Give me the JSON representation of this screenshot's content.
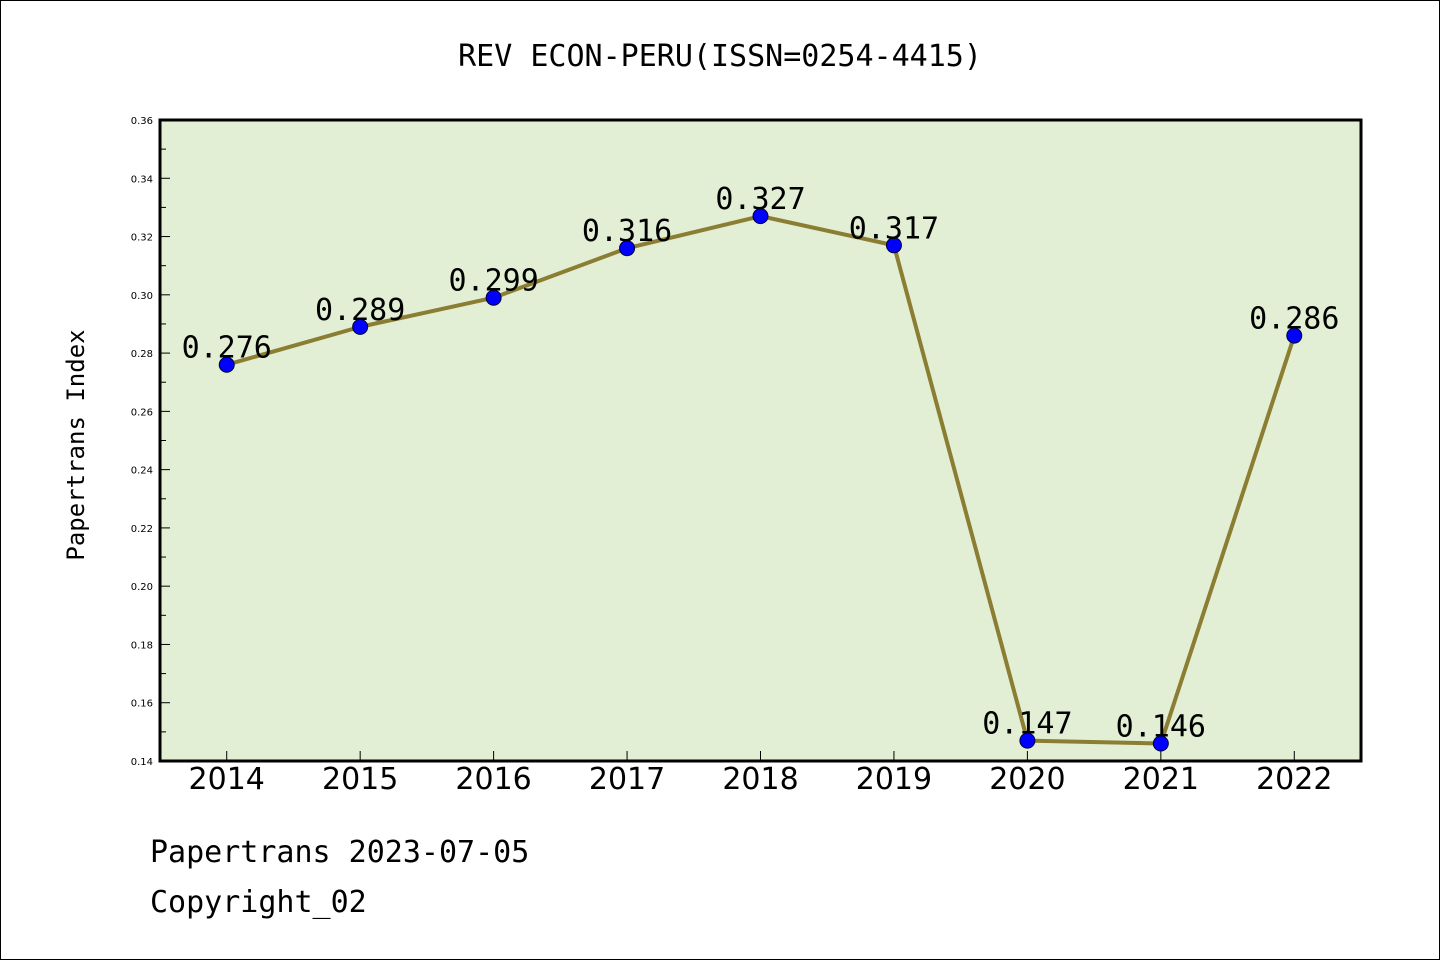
{
  "chart_data": {
    "type": "line",
    "title": "REV ECON-PERU(ISSN=0254-4415)",
    "ylabel": "Papertrans Index",
    "xlabel": "",
    "categories": [
      "2014",
      "2015",
      "2016",
      "2017",
      "2018",
      "2019",
      "2020",
      "2021",
      "2022"
    ],
    "values": [
      0.276,
      0.289,
      0.299,
      0.316,
      0.327,
      0.317,
      0.147,
      0.146,
      0.286
    ],
    "data_labels": [
      "0.276",
      "0.289",
      "0.299",
      "0.316",
      "0.327",
      "0.317",
      "0.147",
      "0.146",
      "0.286"
    ],
    "ylim": [
      0.14,
      0.36
    ],
    "yticks": [
      "0.14",
      "0.16",
      "0.18",
      "0.20",
      "0.22",
      "0.24",
      "0.26",
      "0.28",
      "0.30",
      "0.32",
      "0.34",
      "0.36"
    ],
    "grid": false,
    "legend": "none",
    "colors": {
      "line": "#8b7d32",
      "marker": "#0000ff",
      "plot_background": "#e2efd4",
      "axes": "#000000"
    }
  },
  "footer": {
    "line1": "Papertrans 2023-07-05",
    "line2": "Copyright_02"
  }
}
